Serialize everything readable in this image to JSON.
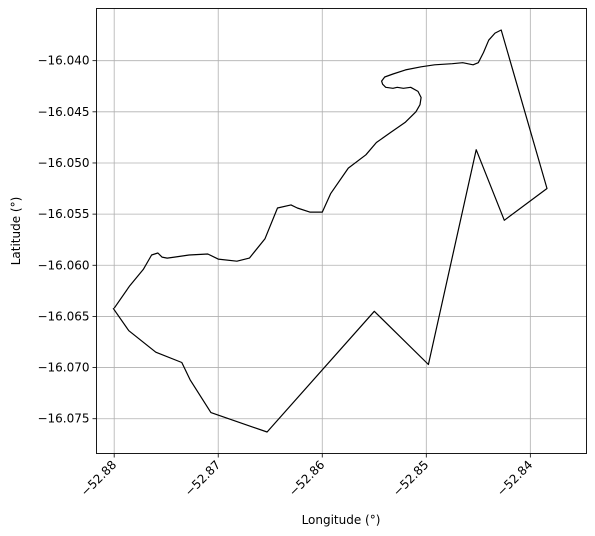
{
  "chart_data": {
    "type": "line",
    "title": "",
    "xlabel": "Longitude (°)",
    "ylabel": "Latitude (°)",
    "xlim": [
      -52.8817,
      -52.8346
    ],
    "ylim": [
      -16.0784,
      -16.0349
    ],
    "grid": true,
    "xticks": [
      -52.88,
      -52.87,
      -52.86,
      -52.85,
      -52.84
    ],
    "xtick_labels": [
      "−52.88",
      "−52.87",
      "−52.86",
      "−52.85",
      "−52.84"
    ],
    "yticks": [
      -16.04,
      -16.045,
      -16.05,
      -16.055,
      -16.06,
      -16.065,
      -16.07,
      -16.075
    ],
    "ytick_labels": [
      "−16.040",
      "−16.045",
      "−16.050",
      "−16.055",
      "−16.060",
      "−16.065",
      "−16.070",
      "−16.075"
    ],
    "series": [
      {
        "color": "#000000",
        "x": [
          -52.88,
          -52.8785,
          -52.8772,
          -52.8764,
          -52.8758,
          -52.8754,
          -52.8749,
          -52.8742,
          -52.8728,
          -52.871,
          -52.87,
          -52.8682,
          -52.867,
          -52.8655,
          -52.8643,
          -52.863,
          -52.8624,
          -52.8612,
          -52.86,
          -52.8592,
          -52.8575,
          -52.8558,
          -52.8548,
          -52.8534,
          -52.852,
          -52.851,
          -52.8506,
          -52.8505,
          -52.8508,
          -52.8515,
          -52.8522,
          -52.8528,
          -52.8532,
          -52.8539,
          -52.8542,
          -52.8543,
          -52.854,
          -52.8532,
          -52.852,
          -52.8505,
          -52.8492,
          -52.8475,
          -52.8465,
          -52.8455,
          -52.845,
          -52.8445,
          -52.844,
          -52.8434,
          -52.8428,
          -52.8384,
          -52.8425,
          -52.8452,
          -52.8498,
          -52.855,
          -52.8653,
          -52.8707,
          -52.8727,
          -52.8735,
          -52.876,
          -52.8786,
          -52.8801
        ],
        "y": [
          -16.0642,
          -16.062,
          -16.0604,
          -16.059,
          -16.0588,
          -16.0592,
          -16.0593,
          -16.0592,
          -16.059,
          -16.0589,
          -16.0594,
          -16.0596,
          -16.0593,
          -16.0574,
          -16.0544,
          -16.0541,
          -16.0544,
          -16.0548,
          -16.0548,
          -16.053,
          -16.0505,
          -16.0492,
          -16.048,
          -16.047,
          -16.046,
          -16.045,
          -16.0443,
          -16.0436,
          -16.043,
          -16.0426,
          -16.0427,
          -16.0426,
          -16.0427,
          -16.0426,
          -16.0423,
          -16.042,
          -16.0416,
          -16.0413,
          -16.0409,
          -16.0406,
          -16.0404,
          -16.0403,
          -16.0402,
          -16.0404,
          -16.0402,
          -16.0392,
          -16.038,
          -16.0373,
          -16.037,
          -16.0525,
          -16.0556,
          -16.0487,
          -16.0697,
          -16.0645,
          -16.0763,
          -16.0744,
          -16.0712,
          -16.0695,
          -16.0685,
          -16.0664,
          -16.0642
        ]
      }
    ]
  }
}
